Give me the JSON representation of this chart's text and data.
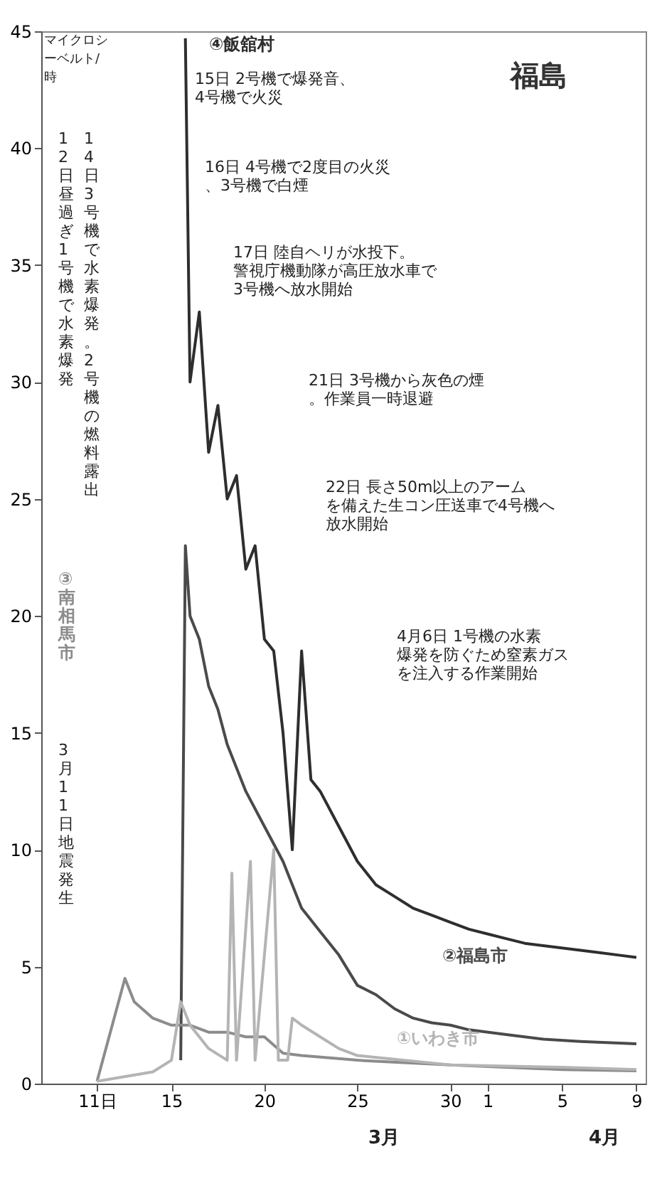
{
  "chart_data": {
    "type": "line",
    "title": "福島",
    "ylabel": "マイクロシーベルト/時",
    "xlim": [
      "--03-08",
      "--04-09T12:00"
    ],
    "xticks": [
      {
        "value": "--03-11",
        "label": "11日"
      },
      {
        "value": "--03-15",
        "label": "15"
      },
      {
        "value": "--03-20",
        "label": "20"
      },
      {
        "value": "--03-25",
        "label": "25"
      },
      {
        "value": "--03-30",
        "label": "30"
      },
      {
        "value": "--04-01",
        "label": "1"
      },
      {
        "value": "--04-05",
        "label": "5"
      },
      {
        "value": "--04-09",
        "label": "9"
      }
    ],
    "ylim": [
      0,
      45
    ],
    "yticks": [
      0,
      5,
      10,
      15,
      20,
      25,
      30,
      35,
      40,
      45
    ],
    "legend": false,
    "grid": false,
    "series": [
      {
        "name": "④飯舘村",
        "color": "#2e2e2e",
        "x": [
          "--03-15T18:00",
          "--03-16",
          "--03-16T12:00",
          "--03-17",
          "--03-17T12:00",
          "--03-18",
          "--03-18T12:00",
          "--03-19",
          "--03-19T12:00",
          "--03-20",
          "--03-20T12:00",
          "--03-21",
          "--03-21T12:00",
          "--03-22",
          "--03-22T12:00",
          "--03-23",
          "--03-24",
          "--03-25",
          "--03-26",
          "--03-27",
          "--03-28",
          "--03-29",
          "--03-30",
          "--03-31",
          "--04-01",
          "--04-02",
          "--04-03",
          "--04-04",
          "--04-05",
          "--04-06",
          "--04-07",
          "--04-08",
          "--04-09"
        ],
        "values": [
          44.7,
          30,
          33,
          27,
          29,
          25,
          26,
          22,
          23,
          19,
          18.5,
          15,
          10,
          18.5,
          13,
          12.5,
          11,
          9.5,
          8.5,
          8,
          7.5,
          7.2,
          6.9,
          6.6,
          6.4,
          6.2,
          6,
          5.9,
          5.8,
          5.7,
          5.6,
          5.5,
          5.4
        ]
      },
      {
        "name": "②福島市",
        "color": "#4a4a4a",
        "x": [
          "--03-15T12:00",
          "--03-15T18:00",
          "--03-16",
          "--03-16T12:00",
          "--03-17",
          "--03-17T12:00",
          "--03-18",
          "--03-19",
          "--03-20",
          "--03-21",
          "--03-22",
          "--03-23",
          "--03-24",
          "--03-25",
          "--03-26",
          "--03-27",
          "--03-28",
          "--03-29",
          "--03-30",
          "--03-31",
          "--04-02",
          "--04-04",
          "--04-06",
          "--04-09"
        ],
        "values": [
          1,
          23,
          20,
          19,
          17,
          16,
          14.5,
          12.5,
          11,
          9.5,
          7.5,
          6.5,
          5.5,
          4.2,
          3.8,
          3.2,
          2.8,
          2.6,
          2.5,
          2.3,
          2.1,
          1.9,
          1.8,
          1.7
        ]
      },
      {
        "name": "③南相馬市",
        "color": "#8c8c8c",
        "x": [
          "--03-11",
          "--03-12T12:00",
          "--03-13",
          "--03-14",
          "--03-15",
          "--03-16",
          "--03-17",
          "--03-18",
          "--03-19",
          "--03-20",
          "--03-21",
          "--03-22",
          "--03-25",
          "--03-30",
          "--04-05",
          "--04-09"
        ],
        "values": [
          0.1,
          4.5,
          3.5,
          2.8,
          2.5,
          2.5,
          2.2,
          2.2,
          2,
          2,
          1.3,
          1.2,
          1,
          0.8,
          0.6,
          0.55
        ]
      },
      {
        "name": "①いわき市",
        "color": "#b4b4b4",
        "x": [
          "--03-11",
          "--03-14",
          "--03-15",
          "--03-15T12:00",
          "--03-16",
          "--03-17",
          "--03-18",
          "--03-18T06:00",
          "--03-18T12:00",
          "--03-19T06:00",
          "--03-19T12:00",
          "--03-20T12:00",
          "--03-20T18:00",
          "--03-21T06:00",
          "--03-21T12:00",
          "--03-22",
          "--03-23",
          "--03-24",
          "--03-25",
          "--03-30",
          "--04-05",
          "--04-09"
        ],
        "values": [
          0.1,
          0.5,
          1,
          3.5,
          2.5,
          1.5,
          1,
          9,
          1,
          9.5,
          1,
          10,
          1,
          1,
          2.8,
          2.5,
          2,
          1.5,
          1.2,
          0.8,
          0.7,
          0.6
        ]
      }
    ],
    "annotations": [
      "15日 2号機で爆発音、4号機で火災",
      "16日 4号機で2度目の火災、3号機で白煙",
      "17日 陸自ヘリが水投下。警視庁機動隊が高圧放水車で3号機へ放水開始",
      "21日 3号機から灰色の煙。作業員一時退避",
      "22日 長さ50m以上のアームを備えた生コン圧送車で4号機へ放水開始",
      "4月6日 1号機の水素爆発を防ぐため窒素ガスを注入する作業開始",
      "12日昼過ぎ1号機で水素爆発",
      "14日3号機で水素爆発。2号機の燃料露出",
      "3月11日地震発生",
      "3月",
      "4月"
    ]
  }
}
